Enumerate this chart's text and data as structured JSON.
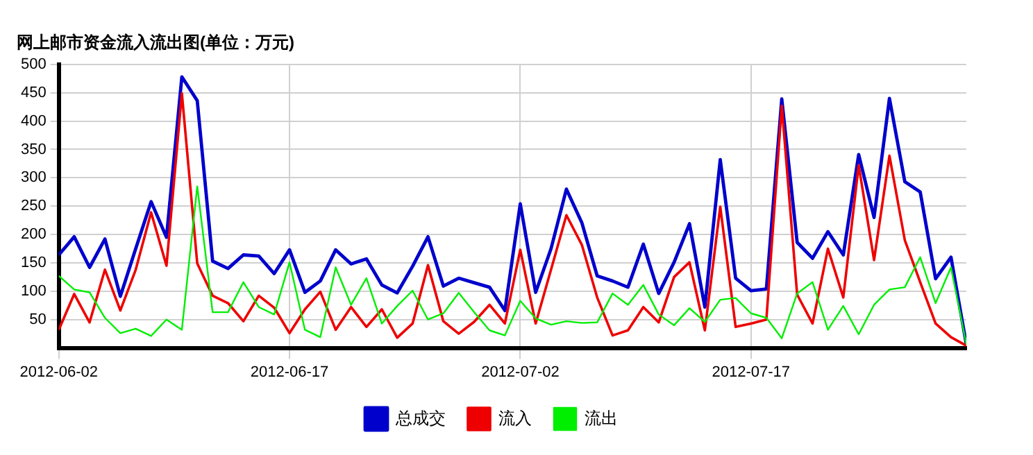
{
  "chart_data": {
    "type": "line",
    "title": "网上邮市资金流入流出图(单位：万元)",
    "x": [
      "2012-06-02",
      "2012-06-03",
      "2012-06-04",
      "2012-06-05",
      "2012-06-06",
      "2012-06-07",
      "2012-06-08",
      "2012-06-09",
      "2012-06-10",
      "2012-06-11",
      "2012-06-12",
      "2012-06-13",
      "2012-06-14",
      "2012-06-15",
      "2012-06-16",
      "2012-06-17",
      "2012-06-18",
      "2012-06-19",
      "2012-06-20",
      "2012-06-21",
      "2012-06-22",
      "2012-06-23",
      "2012-06-24",
      "2012-06-25",
      "2012-06-26",
      "2012-06-27",
      "2012-06-28",
      "2012-06-29",
      "2012-06-30",
      "2012-07-01",
      "2012-07-02",
      "2012-07-03",
      "2012-07-04",
      "2012-07-05",
      "2012-07-06",
      "2012-07-07",
      "2012-07-08",
      "2012-07-09",
      "2012-07-10",
      "2012-07-11",
      "2012-07-12",
      "2012-07-13",
      "2012-07-14",
      "2012-07-15",
      "2012-07-16",
      "2012-07-17",
      "2012-07-18",
      "2012-07-19",
      "2012-07-20",
      "2012-07-21",
      "2012-07-22",
      "2012-07-23",
      "2012-07-24",
      "2012-07-25",
      "2012-07-26",
      "2012-07-27",
      "2012-07-28",
      "2012-07-29",
      "2012-07-30",
      "2012-07-31"
    ],
    "series": [
      {
        "name": "总成交",
        "color": "#0000cc",
        "values": [
          164,
          196,
          142,
          192,
          91,
          175,
          258,
          195,
          478,
          436,
          153,
          140,
          164,
          162,
          131,
          173,
          98,
          118,
          173,
          148,
          157,
          111,
          97,
          144,
          196,
          109,
          123,
          115,
          107,
          66,
          254,
          98,
          175,
          280,
          221,
          127,
          118,
          107,
          183,
          96,
          151,
          219,
          72,
          332,
          123,
          101,
          104,
          439,
          186,
          158,
          205,
          164,
          341,
          230,
          440,
          293,
          275,
          122,
          160,
          6
        ]
      },
      {
        "name": "流入",
        "color": "#ee0000",
        "values": [
          32,
          95,
          45,
          138,
          66,
          138,
          239,
          145,
          449,
          149,
          92,
          79,
          47,
          92,
          71,
          26,
          68,
          99,
          32,
          72,
          37,
          68,
          18,
          43,
          146,
          47,
          25,
          46,
          76,
          43,
          173,
          43,
          138,
          234,
          182,
          89,
          22,
          31,
          72,
          45,
          125,
          151,
          31,
          249,
          37,
          43,
          50,
          427,
          94,
          43,
          175,
          89,
          322,
          155,
          339,
          190,
          116,
          43,
          19,
          4
        ]
      },
      {
        "name": "流出",
        "color": "#00ee00",
        "values": [
          127,
          103,
          98,
          53,
          26,
          34,
          21,
          50,
          32,
          285,
          63,
          63,
          116,
          72,
          59,
          151,
          32,
          19,
          142,
          76,
          123,
          43,
          74,
          101,
          50,
          61,
          97,
          63,
          31,
          22,
          83,
          52,
          41,
          47,
          44,
          45,
          96,
          76,
          111,
          59,
          40,
          70,
          46,
          85,
          88,
          61,
          53,
          17,
          96,
          116,
          32,
          74,
          24,
          76,
          103,
          107,
          160,
          79,
          142,
          6
        ]
      }
    ],
    "xlim": [
      "2012-06-02",
      "2012-07-31"
    ],
    "xticks": [
      "2012-06-02",
      "2012-06-17",
      "2012-07-02",
      "2012-07-17"
    ],
    "ylim": [
      0,
      500
    ],
    "yticks": [
      50,
      100,
      150,
      200,
      250,
      300,
      350,
      400,
      450,
      500
    ],
    "grid": true,
    "legend": "bottom",
    "marker": "none",
    "line_style": "solid"
  }
}
